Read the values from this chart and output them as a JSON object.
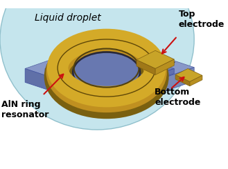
{
  "fig_width": 3.29,
  "fig_height": 2.45,
  "dpi": 100,
  "bg_color": "#ffffff",
  "droplet_color": "#c5e5ed",
  "droplet_edge": "#90c0cc",
  "platform_top_color": "#8898c8",
  "platform_top_color2": "#7080b5",
  "platform_side_left_color": "#6070a8",
  "platform_side_right_color": "#7888b8",
  "ring_gold_dark": "#7a6010",
  "ring_gold_mid": "#c09020",
  "ring_gold_top": "#d4aa28",
  "ring_inner_dark": "#303050",
  "ring_inner_platform": "#7888b8",
  "electrode_top": "#c8a428",
  "electrode_side": "#a07818",
  "electrode_dark": "#806010",
  "text_color": "#000000",
  "arrow_color": "#cc1010",
  "label_liquid": "Liquid droplet",
  "label_top_e": "Top\nelectrode",
  "label_bottom_e": "Bottom\nelectrode",
  "label_aln": "AlN ring\nresonator"
}
